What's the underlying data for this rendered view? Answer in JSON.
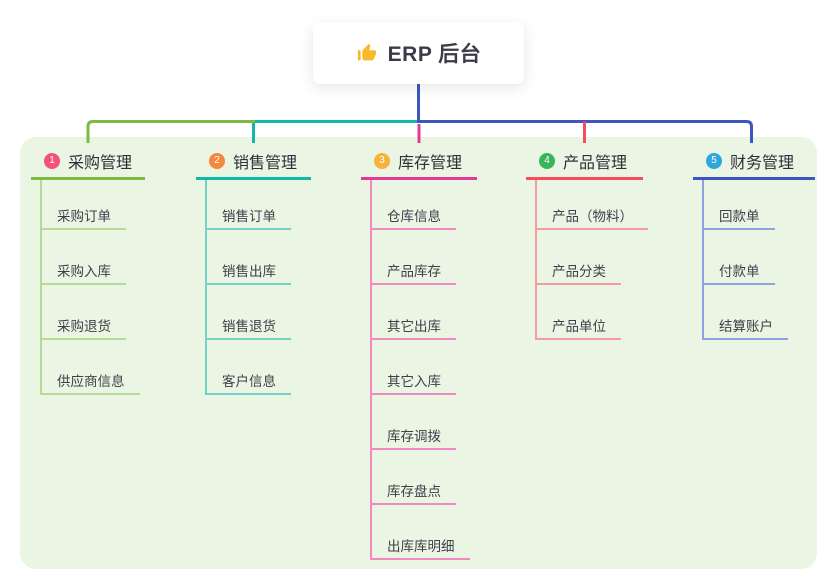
{
  "root": {
    "title": "ERP 后台",
    "icon": "thumbs-up-icon",
    "icon_color": "#f7b92b"
  },
  "branches": [
    {
      "index": "1",
      "title": "采购管理",
      "color": "#7cbb3f",
      "light_color": "#b5da96",
      "badge_color": "#f2527b",
      "items": [
        "采购订单",
        "采购入库",
        "采购退货",
        "供应商信息"
      ]
    },
    {
      "index": "2",
      "title": "销售管理",
      "color": "#13b7a7",
      "light_color": "#74d1c5",
      "badge_color": "#f8873e",
      "items": [
        "销售订单",
        "销售出库",
        "销售退货",
        "客户信息"
      ]
    },
    {
      "index": "3",
      "title": "库存管理",
      "color": "#e43a97",
      "light_color": "#f08ac0",
      "badge_color": "#f8b13a",
      "items": [
        "仓库信息",
        "产品库存",
        "其它出库",
        "其它入库",
        "库存调拨",
        "库存盘点",
        "出库库明细"
      ]
    },
    {
      "index": "4",
      "title": "产品管理",
      "color": "#f44d5e",
      "light_color": "#f79aa1",
      "badge_color": "#36b656",
      "items": [
        "产品（物料）",
        "产品分类",
        "产品单位"
      ]
    },
    {
      "index": "5",
      "title": "财务管理",
      "color": "#3d55be",
      "light_color": "#8fa4df",
      "badge_color": "#2ea7dc",
      "items": [
        "回款单",
        "付款单",
        "结算账户"
      ]
    }
  ],
  "colors": {
    "panel_background": "#eaf5e3",
    "page_background": "#ffffff",
    "title_text": "#2f2f3a",
    "item_text": "#3f3f4a"
  }
}
